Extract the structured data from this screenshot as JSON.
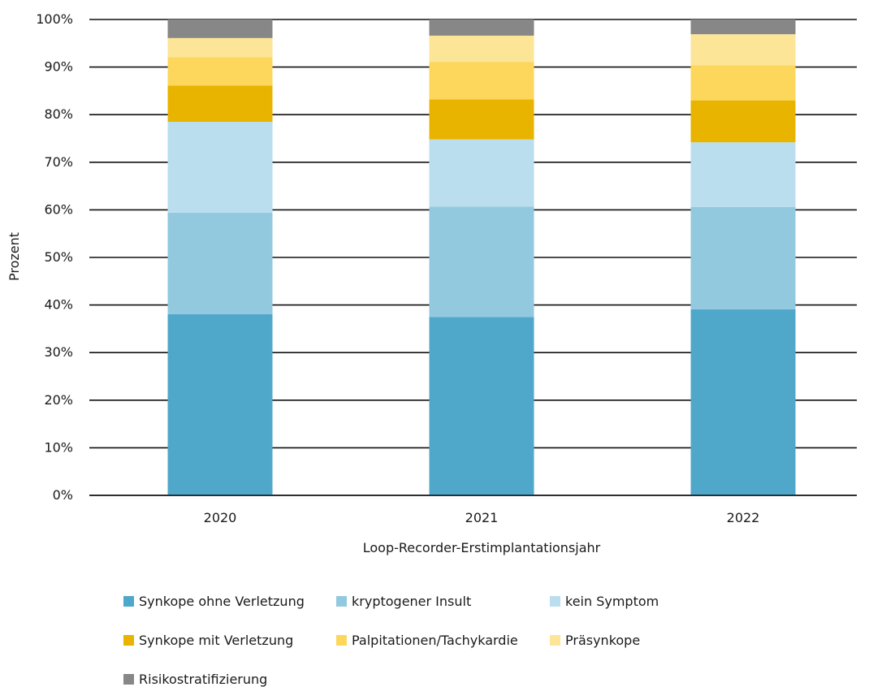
{
  "chart_data": {
    "type": "bar",
    "stacked": true,
    "percent": true,
    "xlabel": "Loop-Recorder-Erstimplantationsjahr",
    "ylabel": "Prozent",
    "ylim": [
      0,
      100
    ],
    "yticks": [
      "0%",
      "10%",
      "20%",
      "30%",
      "40%",
      "50%",
      "60%",
      "70%",
      "80%",
      "90%",
      "100%"
    ],
    "grid": true,
    "legend_position": "bottom",
    "categories": [
      "2020",
      "2021",
      "2022"
    ],
    "series": [
      {
        "name": "Synkope ohne Verletzung",
        "color": "#4fa8ca",
        "values": [
          38.1,
          37.5,
          39.1
        ]
      },
      {
        "name": "kryptogener Insult",
        "color": "#93c9df",
        "values": [
          21.3,
          23.2,
          21.5
        ]
      },
      {
        "name": "kein Symptom",
        "color": "#badeed",
        "values": [
          19.1,
          14.1,
          13.6
        ]
      },
      {
        "name": "Synkope mit Verletzung",
        "color": "#e8b400",
        "values": [
          7.6,
          8.4,
          8.8
        ]
      },
      {
        "name": "Palpitationen/Tachykardie",
        "color": "#fcd75b",
        "values": [
          6.0,
          7.9,
          7.4
        ]
      },
      {
        "name": "Präsynkope",
        "color": "#fde597",
        "values": [
          4.0,
          5.5,
          6.5
        ]
      },
      {
        "name": "Risikostratifizierung",
        "color": "#878787",
        "values": [
          3.9,
          3.4,
          3.1
        ]
      }
    ]
  }
}
